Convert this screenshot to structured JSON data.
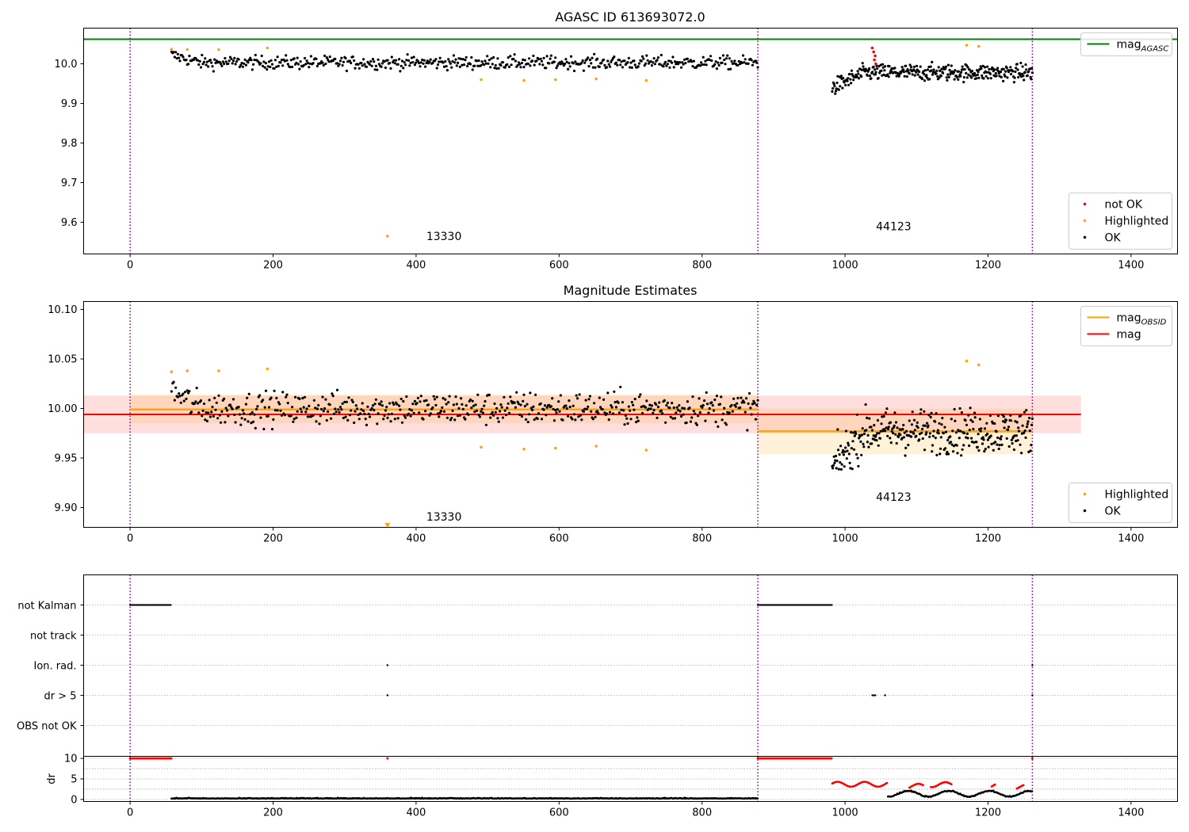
{
  "chart_data": [
    {
      "type": "scatter",
      "title": "AGASC ID 613693072.0",
      "xlim": [
        -65,
        1465
      ],
      "ylim": [
        9.52,
        10.09
      ],
      "xticks": [
        0,
        200,
        400,
        600,
        800,
        1000,
        1200,
        1400
      ],
      "yticks": [
        9.6,
        9.7,
        9.8,
        9.9,
        10.0
      ],
      "ytick_labels": [
        "9.6",
        "9.7",
        "9.8",
        "9.9",
        "10.0"
      ],
      "obs_boundaries": [
        0,
        878,
        1262
      ],
      "obsid_labels": [
        {
          "text": "13330",
          "x": 439,
          "y": 9.555
        },
        {
          "text": "44123",
          "x": 1068,
          "y": 9.58
        }
      ],
      "hlines": [
        {
          "name": "mag",
          "sub": "AGASC",
          "y": 10.062,
          "color": "#008000",
          "x0": -65,
          "x1": 1465
        }
      ],
      "legends": [
        {
          "position": "top-right",
          "items": [
            {
              "kind": "line",
              "color": "#008000",
              "label": "mag",
              "sub": "AGASC"
            }
          ]
        },
        {
          "position": "bottom-right",
          "items": [
            {
              "kind": "point",
              "color": "#ff0000",
              "label": "not OK"
            },
            {
              "kind": "point",
              "color": "#ffa500",
              "label": "Highlighted"
            },
            {
              "kind": "point",
              "color": "#000000",
              "label": "OK"
            }
          ]
        }
      ],
      "segments": [
        {
          "x0": 58,
          "x1": 878,
          "mean": 10.003,
          "sd": 0.012,
          "count": 560,
          "start_level": 10.022,
          "start_len": 40
        },
        {
          "x0": 982,
          "x1": 1262,
          "mean": 9.978,
          "sd": 0.015,
          "count": 330,
          "start_level": 9.94,
          "start_len": 45
        }
      ],
      "highlighted_points": [
        [
          58,
          10.037
        ],
        [
          80,
          10.036
        ],
        [
          124,
          10.036
        ],
        [
          192,
          10.04
        ],
        [
          360,
          9.565
        ],
        [
          491,
          9.96
        ],
        [
          551,
          9.958
        ],
        [
          595,
          9.96
        ],
        [
          652,
          9.962
        ],
        [
          722,
          9.958
        ],
        [
          1170,
          10.047
        ],
        [
          1187,
          10.044
        ]
      ],
      "not_ok_points": [
        [
          1038,
          10.04
        ],
        [
          1040,
          10.03
        ],
        [
          1042,
          10.02
        ],
        [
          1041,
          10.01
        ],
        [
          1043,
          10.0
        ]
      ]
    },
    {
      "type": "scatter",
      "title": "Magnitude Estimates",
      "xlim": [
        -65,
        1465
      ],
      "ylim": [
        9.88,
        10.108
      ],
      "xticks": [
        0,
        200,
        400,
        600,
        800,
        1000,
        1200,
        1400
      ],
      "yticks": [
        9.9,
        9.95,
        10.0,
        10.05,
        10.1
      ],
      "ytick_labels": [
        "9.90",
        "9.95",
        "10.00",
        "10.05",
        "10.10"
      ],
      "obs_boundaries": [
        0,
        878,
        1262
      ],
      "obsid_labels": [
        {
          "text": "13330",
          "x": 439,
          "y": 9.887
        },
        {
          "text": "44123",
          "x": 1068,
          "y": 9.907
        }
      ],
      "mag": {
        "y": 9.994,
        "band": [
          9.975,
          10.013
        ],
        "x0": -65,
        "x1": 1330,
        "color": "#ff0000"
      },
      "mag_obsid": [
        {
          "x0": 0,
          "x1": 878,
          "y": 9.999,
          "band": [
            9.985,
            10.014
          ]
        },
        {
          "x0": 878,
          "x1": 1262,
          "y": 9.977,
          "band": [
            9.954,
            10.0
          ]
        }
      ],
      "legends": [
        {
          "position": "top-right",
          "items": [
            {
              "kind": "line",
              "color": "#ffa500",
              "label": "mag",
              "sub": "OBSID"
            },
            {
              "kind": "line",
              "color": "#ff0000",
              "label": "mag",
              "sub": ""
            }
          ]
        },
        {
          "position": "bottom-right",
          "items": [
            {
              "kind": "point",
              "color": "#ffa500",
              "label": "Highlighted"
            },
            {
              "kind": "point",
              "color": "#000000",
              "label": "OK"
            }
          ]
        }
      ],
      "segments": [
        {
          "x0": 58,
          "x1": 878,
          "mean": 10.0,
          "sd": 0.012,
          "count": 560,
          "start_level": 10.018,
          "start_len": 40
        },
        {
          "x0": 982,
          "x1": 1262,
          "mean": 9.977,
          "sd": 0.016,
          "count": 330,
          "start_level": 9.94,
          "start_len": 45
        }
      ],
      "highlighted_points": [
        [
          58,
          10.037
        ],
        [
          80,
          10.038
        ],
        [
          124,
          10.038
        ],
        [
          192,
          10.04
        ],
        [
          491,
          9.961
        ],
        [
          551,
          9.959
        ],
        [
          595,
          9.96
        ],
        [
          652,
          9.962
        ],
        [
          722,
          9.958
        ],
        [
          1170,
          10.048
        ],
        [
          1187,
          10.044
        ]
      ],
      "offscale_marker": {
        "x": 360,
        "y": 9.882,
        "color": "#ffa500"
      }
    },
    {
      "type": "scatter",
      "title": "",
      "xlim": [
        -65,
        1465
      ],
      "categories": [
        "not Kalman",
        "not track",
        "Ion. rad.",
        "dr > 5",
        "OBS not OK"
      ],
      "obs_boundaries": [
        0,
        878,
        1262
      ],
      "flags": [
        {
          "category": "not Kalman",
          "ranges": [
            [
              0,
              58
            ],
            [
              878,
              982
            ]
          ],
          "points": []
        },
        {
          "category": "not track",
          "ranges": [],
          "points": []
        },
        {
          "category": "Ion. rad.",
          "ranges": [],
          "points": [
            360,
            1262
          ]
        },
        {
          "category": "dr > 5",
          "ranges": [
            [
              1038,
              1043
            ]
          ],
          "points": [
            360,
            1056,
            1262
          ]
        },
        {
          "category": "OBS not OK",
          "ranges": [],
          "points": []
        }
      ]
    },
    {
      "type": "scatter",
      "title": "",
      "ylabel": "dr",
      "xlim": [
        -65,
        1465
      ],
      "ylim": [
        -0.5,
        10.5
      ],
      "xticks": [
        0,
        200,
        400,
        600,
        800,
        1000,
        1200,
        1400
      ],
      "yticks": [
        0,
        5,
        10
      ],
      "ytick_labels": [
        "0",
        "5",
        "10"
      ],
      "obs_boundaries": [
        0,
        878,
        1262
      ],
      "clipped_red_ranges": [
        [
          0,
          58
        ],
        [
          878,
          982
        ]
      ],
      "red_single_points": [
        [
          360,
          10
        ],
        [
          1262,
          10
        ]
      ],
      "dr_black": [
        {
          "x0": 58,
          "x1": 878,
          "y": 0.2
        },
        {
          "x0": 1060,
          "x1": 1262,
          "y": 1.4
        }
      ],
      "dr_red": [
        {
          "x0": 982,
          "x1": 1060,
          "y": 3.7
        },
        {
          "x0": 1090,
          "x1": 1110,
          "y": 3.2
        },
        {
          "x0": 1120,
          "x1": 1150,
          "y": 3.6
        },
        {
          "x0": 1205,
          "x1": 1210,
          "y": 3.3
        },
        {
          "x0": 1240,
          "x1": 1250,
          "y": 3.0
        }
      ]
    }
  ]
}
